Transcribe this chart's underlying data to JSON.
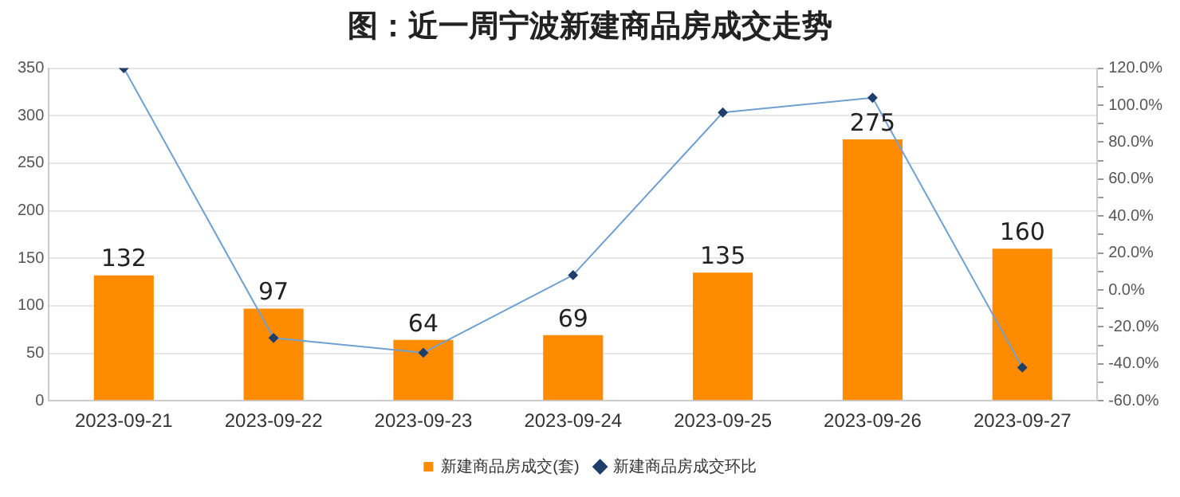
{
  "chart_data": {
    "type": "bar",
    "title": "图：近一周宁波新建商品房成交走势",
    "categories": [
      "2023-09-21",
      "2023-09-22",
      "2023-09-23",
      "2023-09-24",
      "2023-09-25",
      "2023-09-26",
      "2023-09-27"
    ],
    "series": [
      {
        "name": "新建商品房成交(套)",
        "color": "#ff8c00",
        "values": [
          132,
          97,
          64,
          69,
          135,
          275,
          160
        ],
        "value_labels": [
          "132",
          "97",
          "64",
          "69",
          "135",
          "275",
          "160"
        ]
      },
      {
        "name": "新建商品房成交环比",
        "type": "line",
        "axis": "y2",
        "color": "#6fa0d0",
        "marker": "diamond",
        "line_style": "solid",
        "values": [
          120,
          -26,
          -34,
          8,
          96,
          104,
          -42
        ]
      }
    ],
    "ylim": [
      0,
      350
    ],
    "yticks": [
      0,
      50,
      100,
      150,
      200,
      250,
      300,
      350
    ],
    "y2lim": [
      -60,
      120
    ],
    "y2ticks": [
      {
        "value": -60,
        "label": "-60.0%"
      },
      {
        "value": -50,
        "label": null
      },
      {
        "value": -40,
        "label": "-40.0%"
      },
      {
        "value": -30,
        "label": null
      },
      {
        "value": -20,
        "label": "-20.0%"
      },
      {
        "value": -10,
        "label": null
      },
      {
        "value": 0,
        "label": "0.0%"
      },
      {
        "value": 10,
        "label": null
      },
      {
        "value": 20,
        "label": "20.0%"
      },
      {
        "value": 30,
        "label": null
      },
      {
        "value": 40,
        "label": "40.0%"
      },
      {
        "value": 50,
        "label": null
      },
      {
        "value": 60,
        "label": "60.0%"
      },
      {
        "value": 70,
        "label": null
      },
      {
        "value": 80,
        "label": "80.0%"
      },
      {
        "value": 90,
        "label": null
      },
      {
        "value": 100,
        "label": "100.0%"
      },
      {
        "value": 110,
        "label": null
      },
      {
        "value": 120,
        "label": "120.0%"
      }
    ],
    "grid": "y",
    "legend": "bottom"
  }
}
